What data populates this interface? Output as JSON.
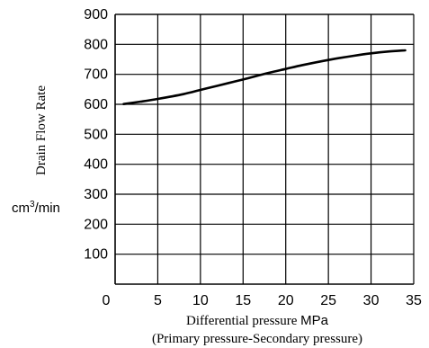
{
  "chart_data": {
    "type": "line",
    "title": "",
    "ylabel": "Drain Flow Rate",
    "yunit_base": "cm",
    "yunit_exp": "3",
    "yunit_tail": "/min",
    "xlabel_main": "Differential pressure ",
    "xlabel_unit": "MPa",
    "xlabel_sub": "(Primary pressure-Secondary pressure)",
    "xlim": [
      0,
      35
    ],
    "ylim": [
      0,
      900
    ],
    "xticks": [
      0,
      5,
      10,
      15,
      20,
      25,
      30,
      35
    ],
    "yticks": [
      100,
      200,
      300,
      400,
      500,
      600,
      700,
      800,
      900
    ],
    "grid": true,
    "series": [
      {
        "x": [
          1,
          3,
          5,
          8,
          10,
          12,
          15,
          18,
          20,
          22,
          25,
          28,
          30,
          32,
          34
        ],
        "y": [
          601,
          609,
          618,
          634,
          648,
          662,
          683,
          705,
          718,
          731,
          748,
          762,
          770,
          776,
          780
        ]
      }
    ]
  },
  "colors": {
    "axis": "#000000",
    "grid": "#000000",
    "line": "#000000",
    "text": "#000000"
  }
}
